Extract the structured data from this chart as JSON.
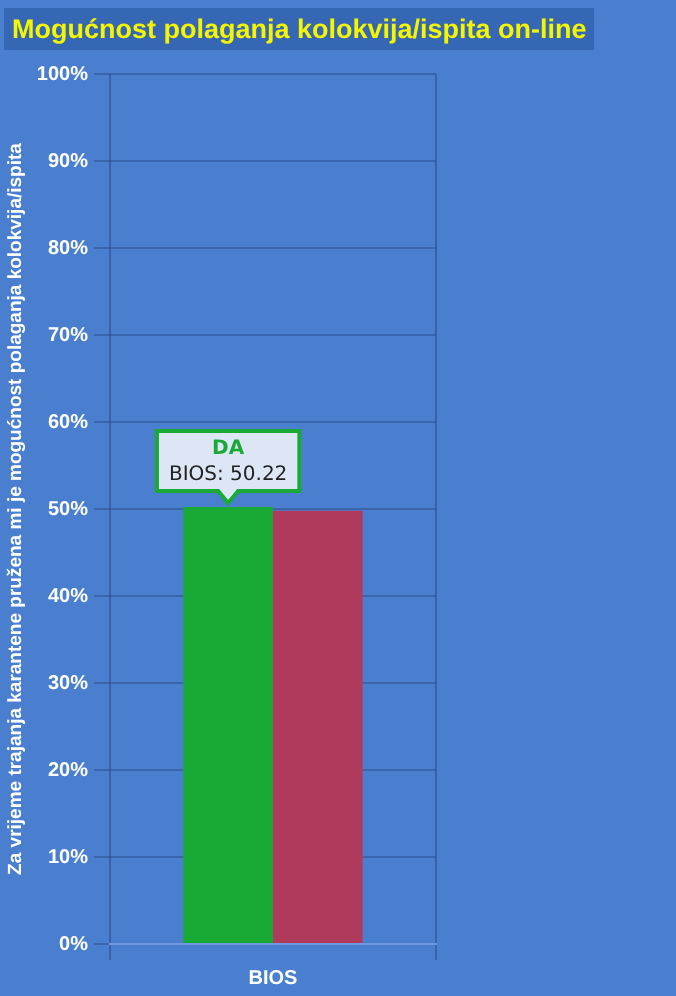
{
  "chart_data": {
    "type": "bar",
    "title": "Mogućnost polaganja kolokvija/ispita on-line",
    "ylabel": "Za vrijeme trajanja karantene pružena mi je mogućnost polaganja kolokvija/ispita",
    "categories": [
      "BIOS"
    ],
    "series": [
      {
        "name": "DA",
        "color": "#19a935",
        "values": [
          50.22
        ],
        "value_labels": [
          "BIOS: 50.22"
        ]
      },
      {
        "color": "#b03a5b",
        "values": [
          49.8
        ]
      }
    ],
    "ylim": [
      0,
      100
    ],
    "yticks": [
      {
        "value": 0,
        "label": "0%"
      },
      {
        "value": 10,
        "label": "10%"
      },
      {
        "value": 20,
        "label": "20%"
      },
      {
        "value": 30,
        "label": "30%"
      },
      {
        "value": 40,
        "label": "40%"
      },
      {
        "value": 50,
        "label": "50%"
      },
      {
        "value": 60,
        "label": "60%"
      },
      {
        "value": 70,
        "label": "70%"
      },
      {
        "value": 80,
        "label": "80%"
      },
      {
        "value": 90,
        "label": "90%"
      },
      {
        "value": 100,
        "label": "100%"
      }
    ],
    "grid": true,
    "legend": false
  }
}
